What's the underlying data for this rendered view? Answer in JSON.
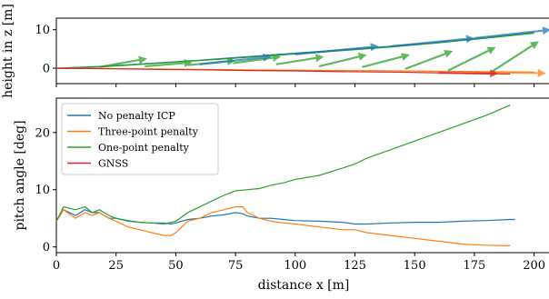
{
  "chart_data": [
    {
      "type": "line",
      "ylabel": "height in z [m]",
      "xlim": [
        0,
        207
      ],
      "ylim": [
        -4,
        13
      ],
      "yticks": [
        0,
        10
      ],
      "series": [
        {
          "color": "#1f77b4",
          "x": [
            0,
            20,
            40,
            60,
            80,
            100,
            120,
            140,
            160,
            180,
            200
          ],
          "y": [
            0,
            0.5,
            1.3,
            2.1,
            3.0,
            3.9,
            4.8,
            5.7,
            6.8,
            8.0,
            9.3
          ]
        },
        {
          "color": "#ff7f0e",
          "x": [
            0,
            20,
            40,
            60,
            80,
            100,
            120,
            140,
            160,
            180,
            200
          ],
          "y": [
            0,
            -0.1,
            -0.2,
            -0.3,
            -0.4,
            -0.5,
            -0.6,
            -0.7,
            -0.8,
            -0.9,
            -1.0
          ]
        },
        {
          "color": "#2ca02c",
          "x": [
            0,
            20,
            40,
            60,
            80,
            100,
            120,
            140,
            160,
            180,
            200
          ],
          "y": [
            0,
            0.4,
            1.2,
            2.0,
            2.8,
            3.7,
            4.6,
            5.5,
            6.6,
            7.8,
            9.1
          ]
        },
        {
          "color": "#d62728",
          "x": [
            0,
            20,
            40,
            60,
            80,
            100,
            120,
            140,
            160,
            180,
            190
          ],
          "y": [
            0,
            -0.1,
            -0.3,
            -0.4,
            -0.6,
            -0.7,
            -0.9,
            -1.0,
            -1.2,
            -1.4,
            -1.5
          ]
        }
      ],
      "arrows": [
        {
          "color": "#2ca02c",
          "x0": 18,
          "y0": 0.3,
          "x1": 38,
          "y1": 2.5
        },
        {
          "color": "#2ca02c",
          "x0": 37,
          "y0": 0.5,
          "x1": 57,
          "y1": 1.5
        },
        {
          "color": "#2ca02c",
          "x0": 55,
          "y0": 0.8,
          "x1": 75,
          "y1": 2.0
        },
        {
          "color": "#2ca02c",
          "x0": 74,
          "y0": 1.3,
          "x1": 94,
          "y1": 3.0
        },
        {
          "color": "#2ca02c",
          "x0": 92,
          "y0": 1.0,
          "x1": 112,
          "y1": 3.0
        },
        {
          "color": "#2ca02c",
          "x0": 110,
          "y0": 0.5,
          "x1": 130,
          "y1": 3.5
        },
        {
          "color": "#2ca02c",
          "x0": 128,
          "y0": 0.3,
          "x1": 148,
          "y1": 3.5
        },
        {
          "color": "#2ca02c",
          "x0": 146,
          "y0": -0.2,
          "x1": 166,
          "y1": 4.5
        },
        {
          "color": "#2ca02c",
          "x0": 164,
          "y0": -0.6,
          "x1": 184,
          "y1": 5.5
        },
        {
          "color": "#2ca02c",
          "x0": 182,
          "y0": -1.0,
          "x1": 202,
          "y1": 7.0
        },
        {
          "color": "#1f77b4",
          "x0": 60,
          "y0": 1.0,
          "x1": 90,
          "y1": 3.0
        },
        {
          "color": "#1f77b4",
          "x0": 100,
          "y0": 3.6,
          "x1": 135,
          "y1": 5.7
        },
        {
          "color": "#1f77b4",
          "x0": 140,
          "y0": 5.7,
          "x1": 175,
          "y1": 7.8
        },
        {
          "color": "#1f77b4",
          "x0": 175,
          "y0": 7.8,
          "x1": 207,
          "y1": 10.0
        },
        {
          "color": "#ff7f0e",
          "x0": 175,
          "y0": -1.0,
          "x1": 205,
          "y1": -1.3
        },
        {
          "color": "#d62728",
          "x0": 160,
          "y0": -1.2,
          "x1": 185,
          "y1": -1.4
        }
      ]
    },
    {
      "type": "line",
      "xlabel": "distance x [m]",
      "ylabel": "pitch angle [deg]",
      "xlim": [
        0,
        207
      ],
      "ylim": [
        -1,
        26
      ],
      "xticks": [
        0,
        25,
        50,
        75,
        100,
        125,
        150,
        175,
        200
      ],
      "yticks": [
        0,
        10,
        20
      ],
      "legend": "upper-left",
      "series": [
        {
          "name": "No penalty ICP",
          "color": "#1f77b4",
          "x": [
            0,
            3,
            8,
            12,
            15,
            18,
            22,
            25,
            30,
            35,
            40,
            45,
            48,
            50,
            55,
            60,
            65,
            70,
            75,
            78,
            80,
            85,
            90,
            95,
            100,
            110,
            120,
            125,
            130,
            140,
            150,
            160,
            170,
            180,
            190,
            192
          ],
          "y": [
            4.5,
            6.5,
            5.5,
            6.5,
            6.0,
            6.0,
            5.0,
            5.0,
            4.6,
            4.3,
            4.2,
            4.2,
            4.0,
            4.2,
            4.8,
            5.0,
            5.4,
            5.6,
            6.0,
            5.8,
            5.4,
            5.0,
            5.0,
            4.8,
            4.6,
            4.5,
            4.3,
            4.0,
            4.0,
            4.2,
            4.3,
            4.3,
            4.5,
            4.6,
            4.8,
            4.8
          ]
        },
        {
          "name": "Three-point penalty",
          "color": "#ff7f0e",
          "x": [
            0,
            3,
            8,
            12,
            15,
            18,
            22,
            25,
            30,
            35,
            40,
            45,
            48,
            50,
            55,
            60,
            65,
            70,
            75,
            78,
            80,
            85,
            90,
            95,
            100,
            110,
            120,
            125,
            130,
            140,
            150,
            160,
            170,
            180,
            190
          ],
          "y": [
            4.5,
            6.5,
            5.0,
            6.0,
            5.5,
            6.0,
            5.0,
            4.5,
            3.5,
            3.0,
            2.5,
            2.0,
            2.0,
            2.5,
            4.5,
            5.0,
            6.0,
            6.5,
            7.0,
            7.0,
            6.0,
            5.0,
            4.5,
            4.2,
            4.0,
            3.5,
            3.0,
            3.0,
            2.5,
            2.0,
            1.5,
            1.0,
            0.5,
            0.3,
            0.2
          ]
        },
        {
          "name": "One-point penalty",
          "color": "#2ca02c",
          "x": [
            0,
            3,
            8,
            12,
            15,
            18,
            22,
            25,
            30,
            35,
            40,
            45,
            50,
            55,
            60,
            65,
            70,
            75,
            80,
            85,
            90,
            95,
            100,
            110,
            120,
            125,
            130,
            140,
            150,
            160,
            170,
            180,
            190
          ],
          "y": [
            4.5,
            7.0,
            6.5,
            7.0,
            6.0,
            6.5,
            5.5,
            5.0,
            4.5,
            4.3,
            4.2,
            4.0,
            4.5,
            6.0,
            7.0,
            8.0,
            9.0,
            9.8,
            10.0,
            10.2,
            10.8,
            11.2,
            11.8,
            12.5,
            13.8,
            14.5,
            15.5,
            17.0,
            18.5,
            20.0,
            21.5,
            23.0,
            24.8
          ]
        },
        {
          "name": "GNSS",
          "color": "#d62728",
          "x": [],
          "y": []
        }
      ]
    }
  ]
}
